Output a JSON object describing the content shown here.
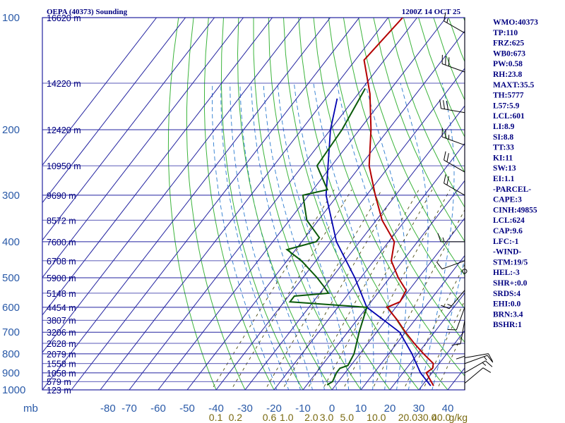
{
  "chart_data": {
    "type": "skew-t sounding",
    "title": "OEPA (40373) Sounding",
    "time": "1200Z 14 OCT 25",
    "pressure_axis_label": "mb",
    "pressure_levels": [
      100,
      200,
      300,
      400,
      500,
      600,
      700,
      800,
      900,
      1000
    ],
    "temperature_ticks": [
      -80,
      -70,
      -60,
      -50,
      -40,
      -30,
      -20,
      -10,
      0,
      10,
      20,
      30,
      40
    ],
    "mixing_ratio_unit": "g/kg",
    "mixing_ratio_ticks": [
      {
        "label": "0.1",
        "x": 0.1
      },
      {
        "label": "0.2",
        "x": 0.2
      },
      {
        "label": "0.6",
        "x": 0.6
      },
      {
        "label": "1.0",
        "x": 1.0
      },
      {
        "label": "2.0",
        "x": 2.0
      },
      {
        "label": "3.0",
        "x": 3.0
      },
      {
        "label": "5.0",
        "x": 5.0
      },
      {
        "label": "10.0",
        "x": 10.0
      },
      {
        "label": "20.0",
        "x": 20.0
      },
      {
        "label": "30.0",
        "x": 30.0
      },
      {
        "label": "40.0",
        "x": 40.0
      }
    ],
    "heights": [
      {
        "p": 100,
        "label": "16620 m"
      },
      {
        "p": 150,
        "label": "14220 m"
      },
      {
        "p": 200,
        "label": "12420 m"
      },
      {
        "p": 250,
        "label": "10950 m"
      },
      {
        "p": 300,
        "label": "9690 m"
      },
      {
        "p": 350,
        "label": "8572 m"
      },
      {
        "p": 400,
        "label": "7600 m"
      },
      {
        "p": 450,
        "label": "6708 m"
      },
      {
        "p": 500,
        "label": "5900 m"
      },
      {
        "p": 550,
        "label": "5148 m"
      },
      {
        "p": 600,
        "label": "4454 m"
      },
      {
        "p": 650,
        "label": "3807 m"
      },
      {
        "p": 700,
        "label": "3206 m"
      },
      {
        "p": 750,
        "label": "2628 m"
      },
      {
        "p": 800,
        "label": "2079 m"
      },
      {
        "p": 850,
        "label": "1558 m"
      },
      {
        "p": 900,
        "label": "1058 m"
      },
      {
        "p": 950,
        "label": "579 m"
      },
      {
        "p": 1000,
        "label": "123 m"
      }
    ],
    "temperature_profile": [
      {
        "p": 100,
        "t": -75
      },
      {
        "p": 130,
        "t": -77
      },
      {
        "p": 160,
        "t": -66
      },
      {
        "p": 200,
        "t": -56
      },
      {
        "p": 250,
        "t": -47
      },
      {
        "p": 300,
        "t": -37
      },
      {
        "p": 350,
        "t": -28
      },
      {
        "p": 400,
        "t": -18
      },
      {
        "p": 450,
        "t": -14
      },
      {
        "p": 500,
        "t": -7
      },
      {
        "p": 540,
        "t": -1
      },
      {
        "p": 580,
        "t": 0
      },
      {
        "p": 600,
        "t": -3
      },
      {
        "p": 650,
        "t": 4
      },
      {
        "p": 700,
        "t": 10
      },
      {
        "p": 750,
        "t": 16
      },
      {
        "p": 800,
        "t": 22
      },
      {
        "p": 850,
        "t": 28
      },
      {
        "p": 875,
        "t": 29
      },
      {
        "p": 900,
        "t": 28
      },
      {
        "p": 975,
        "t": 34
      }
    ],
    "dewpoint_profile": [
      {
        "p": 155,
        "t": -69
      },
      {
        "p": 200,
        "t": -66
      },
      {
        "p": 250,
        "t": -65
      },
      {
        "p": 290,
        "t": -55
      },
      {
        "p": 300,
        "t": -62
      },
      {
        "p": 350,
        "t": -54
      },
      {
        "p": 390,
        "t": -45
      },
      {
        "p": 400,
        "t": -45
      },
      {
        "p": 420,
        "t": -53
      },
      {
        "p": 450,
        "t": -45
      },
      {
        "p": 500,
        "t": -35
      },
      {
        "p": 530,
        "t": -30
      },
      {
        "p": 550,
        "t": -27
      },
      {
        "p": 560,
        "t": -38
      },
      {
        "p": 580,
        "t": -38
      },
      {
        "p": 600,
        "t": -10
      },
      {
        "p": 700,
        "t": -6
      },
      {
        "p": 800,
        "t": -2
      },
      {
        "p": 860,
        "t": -1
      },
      {
        "p": 875,
        "t": -3
      },
      {
        "p": 900,
        "t": -3
      },
      {
        "p": 950,
        "t": -2
      },
      {
        "p": 970,
        "t": -3
      }
    ],
    "parcel_path": [
      {
        "p": 975,
        "t": 33
      },
      {
        "p": 900,
        "t": 26
      },
      {
        "p": 800,
        "t": 18
      },
      {
        "p": 700,
        "t": 8
      },
      {
        "p": 600,
        "t": -10
      },
      {
        "p": 500,
        "t": -22
      },
      {
        "p": 400,
        "t": -38
      },
      {
        "p": 300,
        "t": -54
      },
      {
        "p": 200,
        "t": -70
      },
      {
        "p": 165,
        "t": -76
      }
    ],
    "wind_barbs": [
      {
        "p": 110,
        "dir": 300,
        "spd": 15
      },
      {
        "p": 140,
        "dir": 290,
        "spd": 30
      },
      {
        "p": 180,
        "dir": 280,
        "spd": 30
      },
      {
        "p": 220,
        "dir": 290,
        "spd": 25
      },
      {
        "p": 260,
        "dir": 300,
        "spd": 20
      },
      {
        "p": 300,
        "dir": 300,
        "spd": 20
      },
      {
        "p": 400,
        "dir": 270,
        "spd": 15
      },
      {
        "p": 450,
        "dir": 250,
        "spd": 10
      },
      {
        "p": 480,
        "dir": 0,
        "spd": 0
      },
      {
        "p": 540,
        "dir": 220,
        "spd": 15
      },
      {
        "p": 600,
        "dir": 200,
        "spd": 10
      },
      {
        "p": 650,
        "dir": 190,
        "spd": 10
      },
      {
        "p": 700,
        "dir": 180,
        "spd": 10
      },
      {
        "p": 820,
        "dir": 80,
        "spd": 10
      },
      {
        "p": 850,
        "dir": 70,
        "spd": 15
      },
      {
        "p": 900,
        "dir": 60,
        "spd": 15
      },
      {
        "p": 960,
        "dir": 50,
        "spd": 10
      }
    ],
    "indices": [
      "WMO:40373",
      "TP:110",
      "FRZ:625",
      "WB0:673",
      "PW:0.58",
      "RH:23.8",
      "MAXT:35.5",
      "TH:5777",
      "L57:5.9",
      "LCL:601",
      "LI:8.9",
      "SI:8.8",
      "TT:33",
      "KI:11",
      "SW:13",
      "EI:1.1",
      "-PARCEL-",
      "CAPE:3",
      "CINH:49855",
      "LCL:624",
      "CAP:9.6",
      "LFC:-1",
      "-WIND-",
      "STM:19/5",
      "HEL:-3",
      "SHR+:0.0",
      "SRDS:4",
      "EHI:0.0",
      "BRN:3.4",
      "BSHR:1"
    ],
    "colors": {
      "isobar": "#2323a0",
      "isotherm": "#2323a0",
      "dry_adiabat": "#3cb43c",
      "moist_adiabat": "#2b7bd0",
      "mixing_ratio": "#4a4a10",
      "temperature": "#b40000",
      "dewpoint": "#0a5a0a",
      "parcel": "#0000b0",
      "index_text": "#000080"
    }
  }
}
